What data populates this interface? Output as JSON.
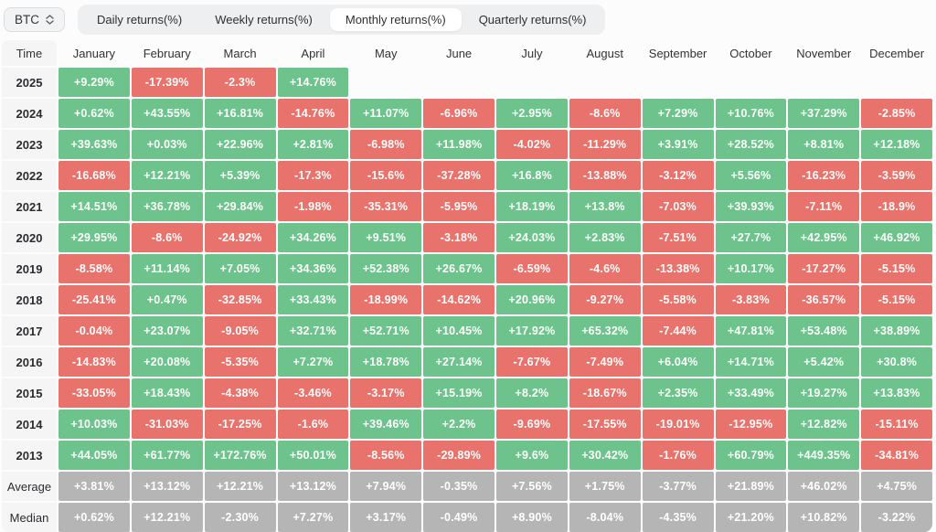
{
  "selector": {
    "label": "BTC"
  },
  "tabs": {
    "items": [
      "Daily returns(%)",
      "Weekly returns(%)",
      "Monthly returns(%)",
      "Quarterly returns(%)"
    ],
    "active_index": 2
  },
  "colors": {
    "positive": "#6ec28b",
    "negative": "#e8736d",
    "stat": "#b5b5b5"
  },
  "table": {
    "time_header": "Time",
    "month_headers": [
      "January",
      "February",
      "March",
      "April",
      "May",
      "June",
      "July",
      "August",
      "September",
      "October",
      "November",
      "December"
    ],
    "rows": [
      {
        "label": "2025",
        "kind": "year",
        "values": [
          "+9.29%",
          "-17.39%",
          "-2.3%",
          "+14.76%",
          null,
          null,
          null,
          null,
          null,
          null,
          null,
          null
        ]
      },
      {
        "label": "2024",
        "kind": "year",
        "values": [
          "+0.62%",
          "+43.55%",
          "+16.81%",
          "-14.76%",
          "+11.07%",
          "-6.96%",
          "+2.95%",
          "-8.6%",
          "+7.29%",
          "+10.76%",
          "+37.29%",
          "-2.85%"
        ]
      },
      {
        "label": "2023",
        "kind": "year",
        "values": [
          "+39.63%",
          "+0.03%",
          "+22.96%",
          "+2.81%",
          "-6.98%",
          "+11.98%",
          "-4.02%",
          "-11.29%",
          "+3.91%",
          "+28.52%",
          "+8.81%",
          "+12.18%"
        ]
      },
      {
        "label": "2022",
        "kind": "year",
        "values": [
          "-16.68%",
          "+12.21%",
          "+5.39%",
          "-17.3%",
          "-15.6%",
          "-37.28%",
          "+16.8%",
          "-13.88%",
          "-3.12%",
          "+5.56%",
          "-16.23%",
          "-3.59%"
        ]
      },
      {
        "label": "2021",
        "kind": "year",
        "values": [
          "+14.51%",
          "+36.78%",
          "+29.84%",
          "-1.98%",
          "-35.31%",
          "-5.95%",
          "+18.19%",
          "+13.8%",
          "-7.03%",
          "+39.93%",
          "-7.11%",
          "-18.9%"
        ]
      },
      {
        "label": "2020",
        "kind": "year",
        "values": [
          "+29.95%",
          "-8.6%",
          "-24.92%",
          "+34.26%",
          "+9.51%",
          "-3.18%",
          "+24.03%",
          "+2.83%",
          "-7.51%",
          "+27.7%",
          "+42.95%",
          "+46.92%"
        ]
      },
      {
        "label": "2019",
        "kind": "year",
        "values": [
          "-8.58%",
          "+11.14%",
          "+7.05%",
          "+34.36%",
          "+52.38%",
          "+26.67%",
          "-6.59%",
          "-4.6%",
          "-13.38%",
          "+10.17%",
          "-17.27%",
          "-5.15%"
        ]
      },
      {
        "label": "2018",
        "kind": "year",
        "values": [
          "-25.41%",
          "+0.47%",
          "-32.85%",
          "+33.43%",
          "-18.99%",
          "-14.62%",
          "+20.96%",
          "-9.27%",
          "-5.58%",
          "-3.83%",
          "-36.57%",
          "-5.15%"
        ]
      },
      {
        "label": "2017",
        "kind": "year",
        "values": [
          "-0.04%",
          "+23.07%",
          "-9.05%",
          "+32.71%",
          "+52.71%",
          "+10.45%",
          "+17.92%",
          "+65.32%",
          "-7.44%",
          "+47.81%",
          "+53.48%",
          "+38.89%"
        ]
      },
      {
        "label": "2016",
        "kind": "year",
        "values": [
          "-14.83%",
          "+20.08%",
          "-5.35%",
          "+7.27%",
          "+18.78%",
          "+27.14%",
          "-7.67%",
          "-7.49%",
          "+6.04%",
          "+14.71%",
          "+5.42%",
          "+30.8%"
        ]
      },
      {
        "label": "2015",
        "kind": "year",
        "values": [
          "-33.05%",
          "+18.43%",
          "-4.38%",
          "-3.46%",
          "-3.17%",
          "+15.19%",
          "+8.2%",
          "-18.67%",
          "+2.35%",
          "+33.49%",
          "+19.27%",
          "+13.83%"
        ]
      },
      {
        "label": "2014",
        "kind": "year",
        "values": [
          "+10.03%",
          "-31.03%",
          "-17.25%",
          "-1.6%",
          "+39.46%",
          "+2.2%",
          "-9.69%",
          "-17.55%",
          "-19.01%",
          "-12.95%",
          "+12.82%",
          "-15.11%"
        ]
      },
      {
        "label": "2013",
        "kind": "year",
        "values": [
          "+44.05%",
          "+61.77%",
          "+172.76%",
          "+50.01%",
          "-8.56%",
          "-29.89%",
          "+9.6%",
          "+30.42%",
          "-1.76%",
          "+60.79%",
          "+449.35%",
          "-34.81%"
        ]
      },
      {
        "label": "Average",
        "kind": "stat",
        "values": [
          "+3.81%",
          "+13.12%",
          "+12.21%",
          "+13.12%",
          "+7.94%",
          "-0.35%",
          "+7.56%",
          "+1.75%",
          "-3.77%",
          "+21.89%",
          "+46.02%",
          "+4.75%"
        ]
      },
      {
        "label": "Median",
        "kind": "stat",
        "values": [
          "+0.62%",
          "+12.21%",
          "-2.30%",
          "+7.27%",
          "+3.17%",
          "-0.49%",
          "+8.90%",
          "-8.04%",
          "-4.35%",
          "+21.20%",
          "+10.82%",
          "-3.22%"
        ]
      }
    ]
  }
}
